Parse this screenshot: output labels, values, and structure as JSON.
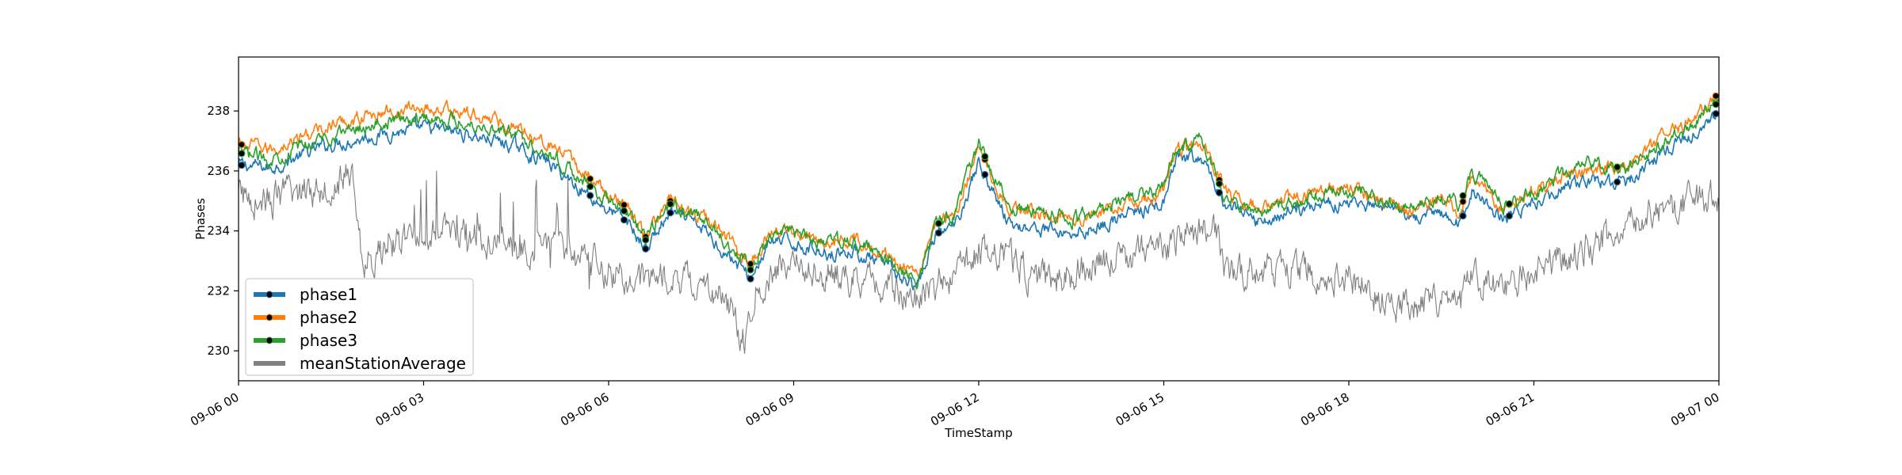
{
  "chart_data": {
    "type": "line",
    "title": "",
    "xlabel": "TimeStamp",
    "ylabel": "Phases",
    "xlim": [
      "09-06 00:00",
      "09-07 00:00"
    ],
    "ylim": [
      229,
      239.8
    ],
    "x_ticks": [
      "09-06 00",
      "09-06 03",
      "09-06 06",
      "09-06 09",
      "09-06 12",
      "09-06 15",
      "09-06 18",
      "09-06 21",
      "09-07 00"
    ],
    "x_tick_hours": [
      0,
      3,
      6,
      9,
      12,
      15,
      18,
      21,
      24
    ],
    "y_ticks": [
      230,
      232,
      234,
      236,
      238
    ],
    "y_tick_labels": [
      "230",
      "232",
      "234",
      "236",
      "238"
    ],
    "grid": false,
    "legend_position": "lower-left",
    "x_unit": "hour of day",
    "series": [
      {
        "name": "phase1",
        "color": "#1f77b4",
        "x": [
          0,
          0.5,
          1,
          1.5,
          2,
          2.5,
          3,
          3.5,
          4,
          4.5,
          5,
          5.5,
          6,
          6.3,
          6.6,
          7,
          7.5,
          8,
          8.3,
          8.6,
          9,
          9.5,
          10,
          10.5,
          11,
          11.3,
          11.6,
          12,
          12.5,
          13,
          13.5,
          14,
          14.5,
          15,
          15.2,
          15.6,
          16,
          16.5,
          17,
          17.5,
          18,
          18.5,
          19,
          19.5,
          19.8,
          20,
          20.5,
          21,
          21.5,
          22,
          22.5,
          23,
          23.5,
          24
        ],
        "y": [
          236.2,
          236.1,
          236.5,
          236.9,
          237.1,
          237.3,
          237.4,
          237.3,
          237.1,
          236.8,
          236.3,
          235.5,
          234.7,
          234.3,
          233.4,
          234.6,
          234.1,
          233.1,
          232.4,
          233.6,
          233.6,
          233.3,
          233.3,
          232.8,
          232.0,
          233.9,
          234.1,
          236.3,
          234.2,
          234.1,
          233.9,
          234.2,
          234.6,
          234.9,
          236.3,
          236.4,
          234.9,
          234.3,
          234.6,
          234.9,
          235.0,
          234.7,
          234.4,
          234.6,
          234.2,
          235.4,
          234.4,
          234.9,
          235.5,
          235.7,
          235.6,
          236.5,
          237.1,
          238.0
        ]
      },
      {
        "name": "phase2",
        "color": "#ff7f0e",
        "x": [
          0,
          0.5,
          1,
          1.5,
          2,
          2.5,
          3,
          3.5,
          4,
          4.5,
          5,
          5.5,
          6,
          6.3,
          6.6,
          7,
          7.5,
          8,
          8.3,
          8.6,
          9,
          9.5,
          10,
          10.5,
          11,
          11.3,
          11.6,
          12,
          12.5,
          13,
          13.5,
          14,
          14.5,
          15,
          15.2,
          15.6,
          16,
          16.5,
          17,
          17.5,
          18,
          18.5,
          19,
          19.5,
          19.8,
          20,
          20.5,
          21,
          21.5,
          22,
          22.5,
          23,
          23.5,
          24
        ],
        "y": [
          236.9,
          236.7,
          237.1,
          237.5,
          237.8,
          238.0,
          238.1,
          238.0,
          237.8,
          237.5,
          237.0,
          236.1,
          235.2,
          234.8,
          233.8,
          235.0,
          234.5,
          233.6,
          232.9,
          234.0,
          234.0,
          233.7,
          233.7,
          233.3,
          232.5,
          234.2,
          234.5,
          236.8,
          234.7,
          234.6,
          234.4,
          234.6,
          235.0,
          235.3,
          236.7,
          236.9,
          235.3,
          234.8,
          235.1,
          235.3,
          235.4,
          235.0,
          234.7,
          235.0,
          234.7,
          235.8,
          234.8,
          235.3,
          235.9,
          236.1,
          236.1,
          236.9,
          237.6,
          238.6
        ]
      },
      {
        "name": "phase3",
        "color": "#2ca02c",
        "x": [
          0,
          0.5,
          1,
          1.5,
          2,
          2.5,
          3,
          3.5,
          4,
          4.5,
          5,
          5.5,
          6,
          6.3,
          6.6,
          7,
          7.5,
          8,
          8.3,
          8.6,
          9,
          9.5,
          10,
          10.5,
          11,
          11.3,
          11.6,
          12,
          12.5,
          13,
          13.5,
          14,
          14.5,
          15,
          15.2,
          15.6,
          16,
          16.5,
          17,
          17.5,
          18,
          18.5,
          19,
          19.5,
          19.8,
          20,
          20.5,
          21,
          21.5,
          22,
          22.5,
          23,
          23.5,
          24
        ],
        "y": [
          236.6,
          236.4,
          236.8,
          237.2,
          237.5,
          237.7,
          237.8,
          237.7,
          237.5,
          237.2,
          236.7,
          235.8,
          235.0,
          234.6,
          233.7,
          234.9,
          234.4,
          233.5,
          232.7,
          233.9,
          233.9,
          233.6,
          233.6,
          233.1,
          232.3,
          234.2,
          234.5,
          236.9,
          234.8,
          234.7,
          234.4,
          234.7,
          235.1,
          235.4,
          236.8,
          237.0,
          235.1,
          234.6,
          234.9,
          235.2,
          235.4,
          235.1,
          234.8,
          235.1,
          234.9,
          236.0,
          234.8,
          235.3,
          235.9,
          236.2,
          236.1,
          236.8,
          237.5,
          238.3
        ]
      },
      {
        "name": "meanStationAverage",
        "color": "#7f7f7f",
        "x": [
          0,
          0.5,
          1,
          1.5,
          1.85,
          2,
          2.5,
          3,
          3.5,
          4,
          4.5,
          5,
          5.5,
          6,
          6.5,
          7,
          7.5,
          8,
          8.2,
          8.4,
          8.6,
          9,
          9.5,
          10,
          10.5,
          11,
          11.5,
          12,
          12.5,
          13,
          13.5,
          14,
          14.5,
          15,
          15.5,
          15.8,
          16,
          16.5,
          17,
          17.5,
          18,
          18.5,
          19,
          19.5,
          19.8,
          20,
          20.5,
          21,
          21.5,
          22,
          22.5,
          23,
          23.5,
          24
        ],
        "y": [
          235.2,
          235.0,
          235.3,
          235.6,
          235.9,
          233.0,
          233.4,
          233.8,
          234.0,
          233.6,
          233.3,
          233.5,
          233.2,
          232.7,
          232.3,
          232.5,
          232.3,
          231.4,
          230.3,
          232.0,
          232.5,
          233.0,
          232.6,
          232.4,
          232.2,
          231.8,
          232.4,
          233.4,
          233.1,
          232.3,
          232.5,
          233.0,
          233.2,
          233.5,
          233.9,
          234.5,
          232.5,
          232.8,
          232.8,
          232.6,
          232.5,
          231.8,
          231.5,
          231.8,
          231.4,
          232.4,
          232.0,
          232.8,
          233.1,
          233.6,
          234.2,
          234.6,
          235.0,
          235.2
        ]
      }
    ],
    "marker_times": [
      0.05,
      5.7,
      6.25,
      6.6,
      7.0,
      8.3,
      11.35,
      12.1,
      15.9,
      19.85,
      20.6,
      22.35,
      23.95
    ],
    "legend": [
      "phase1",
      "phase2",
      "phase3",
      "meanStationAverage"
    ]
  }
}
